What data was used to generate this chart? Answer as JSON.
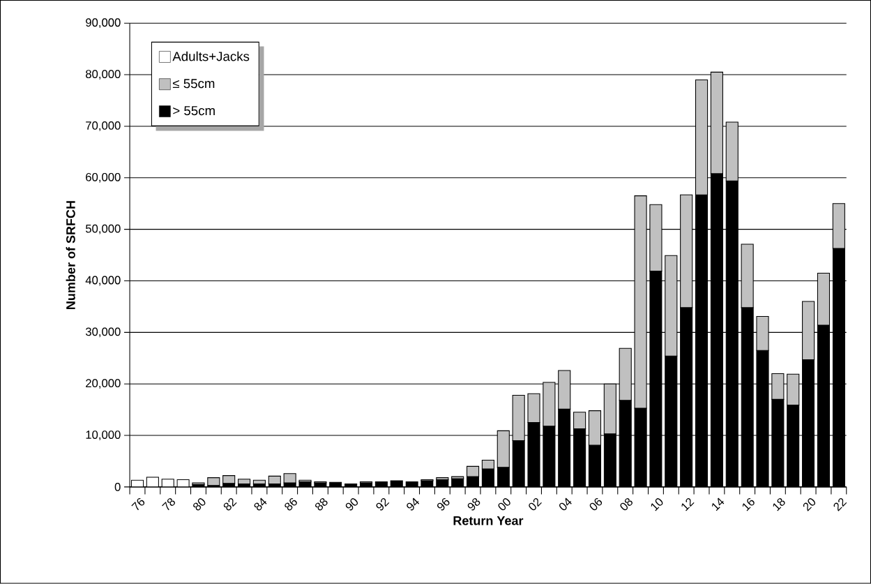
{
  "chart_data": {
    "type": "bar",
    "stacked": true,
    "xlabel": "Return Year",
    "ylabel": "Number of SRFCH",
    "categories": [
      "76",
      null,
      "78",
      null,
      "80",
      null,
      "82",
      null,
      "84",
      null,
      "86",
      null,
      "88",
      null,
      "90",
      null,
      "92",
      null,
      "94",
      null,
      "96",
      null,
      "98",
      null,
      "00",
      null,
      "02",
      null,
      "04",
      null,
      "06",
      null,
      "08",
      null,
      "10",
      null,
      "12",
      null,
      "14",
      null,
      "16",
      null,
      "18",
      null,
      "20",
      null,
      "22"
    ],
    "series": [
      {
        "name": "> 55cm",
        "color": "#000000",
        "values": [
          null,
          null,
          null,
          null,
          500,
          300,
          700,
          600,
          600,
          600,
          800,
          1000,
          800,
          900,
          600,
          800,
          1000,
          1200,
          1000,
          1200,
          1400,
          1600,
          2000,
          3500,
          3800,
          9000,
          12500,
          11800,
          15100,
          11300,
          8100,
          10300,
          16800,
          15300,
          41900,
          25400,
          34800,
          56700,
          60800,
          59400,
          34800,
          26500,
          17000,
          15900,
          24700,
          31400,
          46300
        ]
      },
      {
        "name": "≤ 55cm",
        "color": "#c0c0c0",
        "values": [
          null,
          null,
          null,
          null,
          300,
          1500,
          1500,
          900,
          700,
          1500,
          1800,
          300,
          200,
          null,
          null,
          200,
          null,
          null,
          null,
          200,
          400,
          400,
          2000,
          1700,
          7100,
          8800,
          5600,
          8500,
          7500,
          3200,
          6700,
          9700,
          10100,
          41200,
          12900,
          19500,
          21900,
          22300,
          19700,
          11400,
          12300,
          6600,
          5000,
          6000,
          11300,
          10100,
          8700
        ]
      },
      {
        "name": "Adults+Jacks",
        "color": "#ffffff",
        "values": [
          1300,
          1900,
          1500,
          1400,
          null,
          null,
          null,
          null,
          null,
          null,
          null,
          null,
          null,
          null,
          null,
          null,
          null,
          null,
          null,
          null,
          null,
          null,
          null,
          null,
          null,
          null,
          null,
          null,
          null,
          null,
          null,
          null,
          null,
          null,
          null,
          null,
          null,
          null,
          null,
          null,
          null,
          null,
          null,
          null,
          null,
          null,
          null
        ]
      }
    ],
    "ylim": [
      0,
      90000
    ],
    "yticks": [
      0,
      {
        "value": 10000,
        "label": "10,000"
      },
      {
        "value": 20000,
        "label": "20,000"
      },
      {
        "value": 30000,
        "label": "30,000"
      },
      {
        "value": 40000,
        "label": "40,000"
      },
      {
        "value": 50000,
        "label": "50,000"
      },
      {
        "value": 60000,
        "label": "60,000"
      },
      {
        "value": 70000,
        "label": "70,000"
      },
      {
        "value": 80000,
        "label": "80,000"
      },
      {
        "value": 90000,
        "label": "90,000"
      }
    ],
    "grid": "y",
    "legend": "top left"
  }
}
